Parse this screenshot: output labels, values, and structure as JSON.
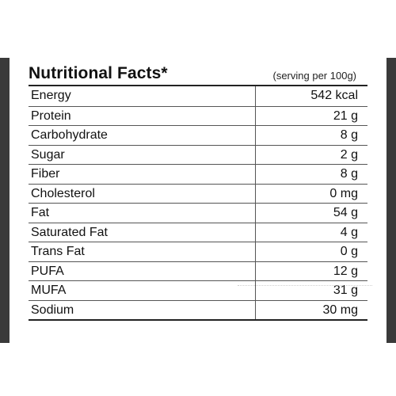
{
  "label": {
    "title": "Nutritional Facts*",
    "serving": "(serving per 100g)",
    "rows": [
      {
        "name": "Energy",
        "value": "542 kcal"
      },
      {
        "name": "Protein",
        "value": "21 g"
      },
      {
        "name": "Carbohydrate",
        "value": "8 g"
      },
      {
        "name": "Sugar",
        "value": "2 g"
      },
      {
        "name": "Fiber",
        "value": "8 g"
      },
      {
        "name": "Cholesterol",
        "value": "0 mg"
      },
      {
        "name": "Fat",
        "value": "54 g"
      },
      {
        "name": "Saturated Fat",
        "value": "4 g"
      },
      {
        "name": "Trans Fat",
        "value": "0 g"
      },
      {
        "name": "PUFA",
        "value": "12 g"
      },
      {
        "name": "MUFA",
        "value": "31 g"
      },
      {
        "name": "Sodium",
        "value": "30 mg"
      }
    ]
  },
  "colors": {
    "frame": "#3a3a3a",
    "panel": "#ffffff",
    "text": "#111111"
  }
}
